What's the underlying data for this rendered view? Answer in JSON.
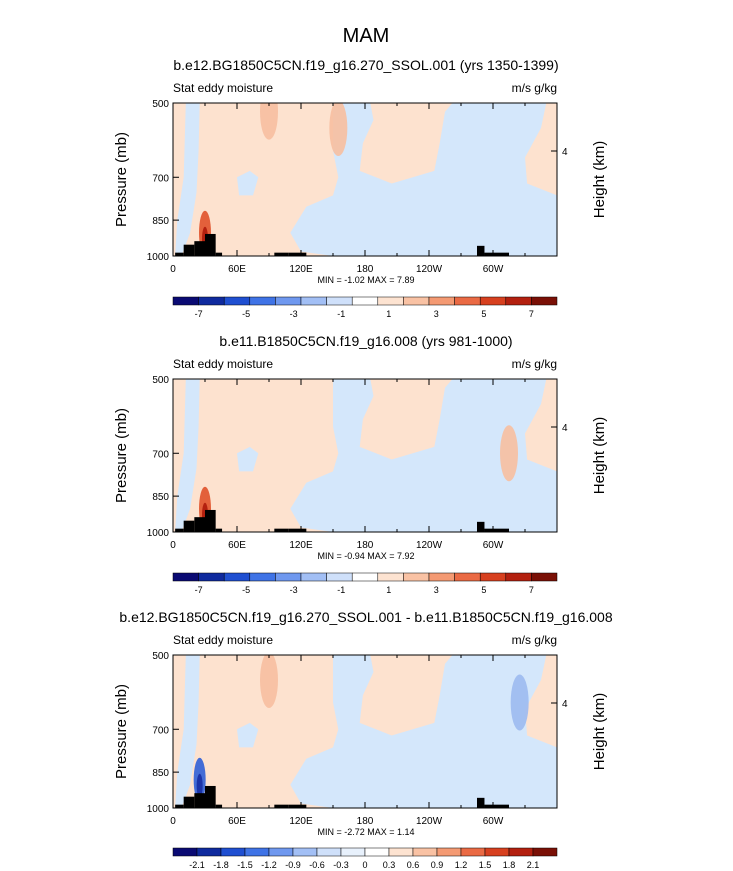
{
  "figure": {
    "title": "MAM"
  },
  "colors": {
    "above": "#fde2cf",
    "below": "#d4e7fb",
    "topography": "#000000",
    "frame": "#000000"
  },
  "chart_data": [
    {
      "type": "heatmap",
      "title": "b.e12.BG1850C5CN.f19_g16.270_SSOL.001 (yrs 1350-1399)",
      "left_label": "Stat eddy moisture",
      "right_label": "m/s g/kg",
      "ylabel": "Pressure (mb)",
      "ylabel_right": "Height (km)",
      "xticks": [
        "0",
        "60E",
        "120E",
        "180",
        "120W",
        "60W"
      ],
      "yticks": [
        "500",
        "700",
        "850",
        "1000"
      ],
      "right_ticks": [
        "4"
      ],
      "ylim": [
        1000,
        500
      ],
      "xlim": [
        0,
        360
      ],
      "stats": "MIN = -1.02  MAX = 7.89",
      "colorbar_labels": [
        "-7",
        "-5",
        "-3",
        "-1",
        "1",
        "3",
        "5",
        "7"
      ],
      "colorbar_colors": [
        "#0a0a73",
        "#0f2a9e",
        "#1f4fd1",
        "#3f73e6",
        "#6f98ef",
        "#a2bff5",
        "#cfe0fa",
        "#ffffff",
        "#fde3d1",
        "#f9c2a4",
        "#f49a73",
        "#ea6a44",
        "#d7401f",
        "#b3200f",
        "#7a1006"
      ],
      "anomalies": [
        {
          "lon": 30,
          "p": 900,
          "value": 7.9
        },
        {
          "lon": 90,
          "p": 520,
          "value": 0.5
        },
        {
          "lon": 155,
          "p": 560,
          "value": 0.5
        }
      ]
    },
    {
      "type": "heatmap",
      "title": "b.e11.B1850C5CN.f19_g16.008 (yrs 981-1000)",
      "left_label": "Stat eddy moisture",
      "right_label": "m/s g/kg",
      "ylabel": "Pressure (mb)",
      "ylabel_right": "Height (km)",
      "xticks": [
        "0",
        "60E",
        "120E",
        "180",
        "120W",
        "60W"
      ],
      "yticks": [
        "500",
        "700",
        "850",
        "1000"
      ],
      "right_ticks": [
        "4"
      ],
      "ylim": [
        1000,
        500
      ],
      "xlim": [
        0,
        360
      ],
      "stats": "MIN = -0.94  MAX =  7.92",
      "colorbar_labels": [
        "-7",
        "-5",
        "-3",
        "-1",
        "1",
        "3",
        "5",
        "7"
      ],
      "colorbar_colors": [
        "#0a0a73",
        "#0f2a9e",
        "#1f4fd1",
        "#3f73e6",
        "#6f98ef",
        "#a2bff5",
        "#cfe0fa",
        "#ffffff",
        "#fde3d1",
        "#f9c2a4",
        "#f49a73",
        "#ea6a44",
        "#d7401f",
        "#b3200f",
        "#7a1006"
      ],
      "anomalies": [
        {
          "lon": 30,
          "p": 900,
          "value": 7.9
        },
        {
          "lon": 315,
          "p": 700,
          "value": 0.5
        }
      ]
    },
    {
      "type": "heatmap",
      "title": "b.e12.BG1850C5CN.f19_g16.270_SSOL.001 - b.e11.B1850C5CN.f19_g16.008",
      "left_label": "Stat eddy moisture",
      "right_label": "m/s g/kg",
      "ylabel": "Pressure (mb)",
      "ylabel_right": "Height (km)",
      "xticks": [
        "0",
        "60E",
        "120E",
        "180",
        "120W",
        "60W"
      ],
      "yticks": [
        "500",
        "700",
        "850",
        "1000"
      ],
      "right_ticks": [
        "4"
      ],
      "ylim": [
        1000,
        500
      ],
      "xlim": [
        0,
        360
      ],
      "stats": "MIN = -2.72  MAX =  1.14",
      "colorbar_labels": [
        "-2.1",
        "-1.8",
        "-1.5",
        "-1.2",
        "-0.9",
        "-0.6",
        "-0.3",
        "0",
        "0.3",
        "0.6",
        "0.9",
        "1.2",
        "1.5",
        "1.8",
        "2.1"
      ],
      "colorbar_colors": [
        "#0a0a73",
        "#0f2a9e",
        "#1f4fd1",
        "#3f73e6",
        "#6f98ef",
        "#a2bff5",
        "#cfe0fa",
        "#e8f1fc",
        "#ffffff",
        "#fde3d1",
        "#f9c2a4",
        "#f49a73",
        "#ea6a44",
        "#d7401f",
        "#b3200f",
        "#7a1006"
      ],
      "anomalies": [
        {
          "lon": 25,
          "p": 880,
          "value": -2.7
        },
        {
          "lon": 325,
          "p": 620,
          "value": -1.2
        },
        {
          "lon": 90,
          "p": 560,
          "value": 0.5
        }
      ]
    }
  ]
}
